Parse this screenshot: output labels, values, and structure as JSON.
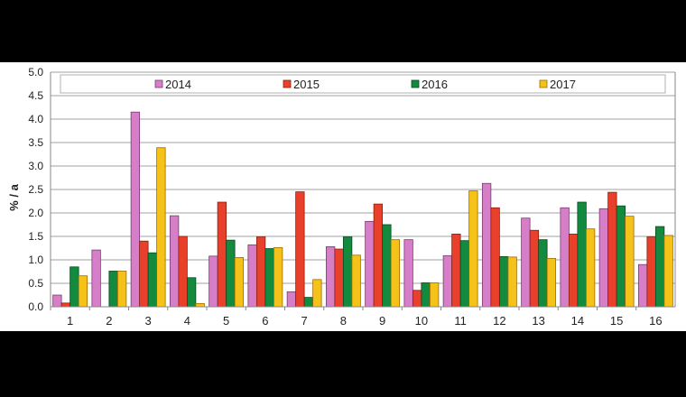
{
  "chart_data": {
    "type": "bar",
    "title": "",
    "xlabel": "",
    "ylabel": "% / a",
    "ylim": [
      0,
      5.0
    ],
    "yticks": [
      "0.0",
      "0.5",
      "1.0",
      "1.5",
      "2.0",
      "2.5",
      "3.0",
      "3.5",
      "4.0",
      "4.5",
      "5.0"
    ],
    "grid": true,
    "legend_position": "top-inside",
    "categories": [
      "1",
      "2",
      "3",
      "4",
      "5",
      "6",
      "7",
      "8",
      "9",
      "10",
      "11",
      "12",
      "13",
      "14",
      "15",
      "16"
    ],
    "series": [
      {
        "name": "2014",
        "color": "#d67fc8",
        "values": [
          0.25,
          1.21,
          4.15,
          1.94,
          1.08,
          1.32,
          0.32,
          1.28,
          1.82,
          1.43,
          1.09,
          2.63,
          1.89,
          2.11,
          2.09,
          0.9
        ]
      },
      {
        "name": "2015",
        "color": "#e8402a",
        "values": [
          0.08,
          0.0,
          1.4,
          1.5,
          2.23,
          1.49,
          2.45,
          1.23,
          2.19,
          0.35,
          1.55,
          2.11,
          1.63,
          1.55,
          2.44,
          1.49
        ]
      },
      {
        "name": "2016",
        "color": "#138a3e",
        "values": [
          0.85,
          0.76,
          1.15,
          0.62,
          1.42,
          1.24,
          0.2,
          1.49,
          1.75,
          0.51,
          1.41,
          1.07,
          1.43,
          2.23,
          2.15,
          1.71
        ]
      },
      {
        "name": "2017",
        "color": "#f5c21a",
        "values": [
          0.66,
          0.76,
          3.39,
          0.07,
          1.05,
          1.26,
          0.58,
          1.1,
          1.43,
          0.51,
          2.47,
          1.06,
          1.03,
          1.66,
          1.93,
          1.52
        ]
      }
    ]
  }
}
